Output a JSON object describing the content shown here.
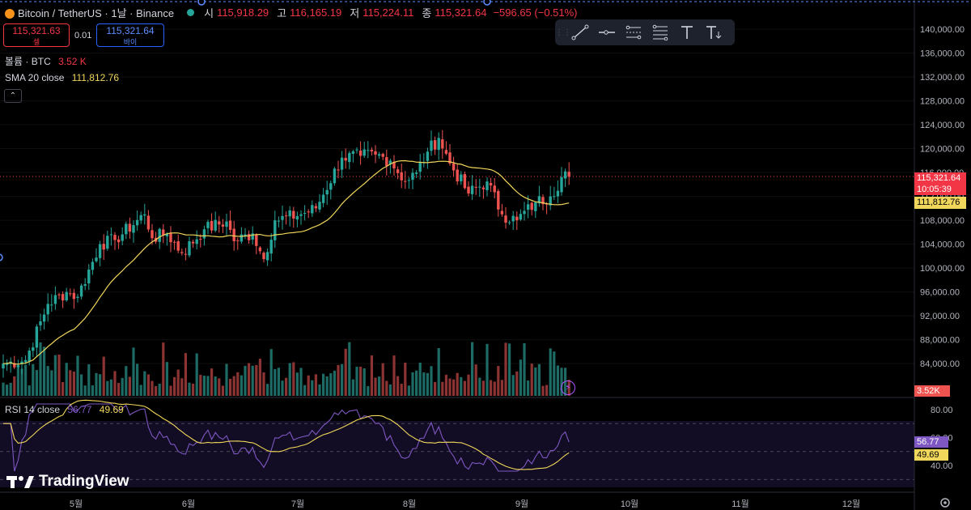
{
  "header": {
    "symbol": "Bitcoin / TetherUS · 1날 · Binance",
    "open_label": "시",
    "open": "115,918.29",
    "high_label": "고",
    "high": "116,165.19",
    "low_label": "저",
    "low": "115,224.11",
    "close_label": "종",
    "close": "115,321.64",
    "change": "−596.65 (−0.51%)"
  },
  "trade": {
    "sell_price": "115,321.63",
    "sell_label": "셀",
    "spread": "0.01",
    "buy_price": "115,321.64",
    "buy_label": "바이"
  },
  "legends": {
    "volume_label": "볼륨 · BTC",
    "volume_value": "3.52 K",
    "sma_label": "SMA 20 close",
    "sma_value": "111,812.76",
    "rsi_label": "RSI 14 close",
    "rsi_value": "56.77",
    "rsi_ma_value": "49.69"
  },
  "price_tags": {
    "last": "115,321.64",
    "countdown": "10:05:39",
    "sma": "111,812.76",
    "volume": "3.52K",
    "rsi": "56.77",
    "rsi_ma": "49.69"
  },
  "branding": "TradingView",
  "toolbar_icons": [
    "trend-line-icon",
    "horizontal-ray-icon",
    "parallel-channel-icon",
    "fib-retracement-icon",
    "text-icon",
    "anchored-text-icon"
  ],
  "colors": {
    "up": "#26a69a",
    "down": "#ef5350",
    "sma": "#f0d65a",
    "rsi": "#7e57c2",
    "rsi_ma": "#f0d65a",
    "last_price": "#f23645"
  },
  "chart_data": {
    "type": "candlestick",
    "interval": "1D",
    "price_axis": {
      "ylim": [
        80500,
        143000
      ],
      "ticks": [
        140000,
        136000,
        132000,
        128000,
        124000,
        120000,
        116000,
        112000,
        108000,
        104000,
        100000,
        96000,
        92000,
        88000,
        84000
      ],
      "tick_labels": [
        "140,000.00",
        "136,000.00",
        "132,000.00",
        "128,000.00",
        "124,000.00",
        "120,000.00",
        "116,000.00",
        "112,000.00",
        "108,000.00",
        "104,000.00",
        "100,000.00",
        "96,000.00",
        "92,000.00",
        "88,000.00",
        "84,000.00"
      ]
    },
    "time_axis": {
      "labels": [
        "5월",
        "6월",
        "7월",
        "8월",
        "9월",
        "10월",
        "11월",
        "12월"
      ]
    },
    "anchors": [
      [
        0,
        84000,
        3
      ],
      [
        6,
        84600,
        2
      ],
      [
        12,
        94000,
        2
      ],
      [
        17,
        96000,
        2
      ],
      [
        20,
        95200,
        2
      ],
      [
        26,
        104000,
        3
      ],
      [
        30,
        104700,
        2
      ],
      [
        38,
        109000,
        3
      ],
      [
        40,
        105000,
        3
      ],
      [
        44,
        105800,
        2
      ],
      [
        48,
        102500,
        3
      ],
      [
        54,
        106500,
        2
      ],
      [
        60,
        107800,
        2
      ],
      [
        62,
        104500,
        3
      ],
      [
        67,
        105800,
        2
      ],
      [
        70,
        101500,
        3
      ],
      [
        73,
        108000,
        3
      ],
      [
        80,
        109000,
        2
      ],
      [
        84,
        110000,
        2
      ],
      [
        91,
        118500,
        3
      ],
      [
        96,
        118800,
        2
      ],
      [
        100,
        119000,
        2
      ],
      [
        104,
        118000,
        2
      ],
      [
        108,
        114500,
        3
      ],
      [
        111,
        116000,
        2
      ],
      [
        114,
        119500,
        2
      ],
      [
        117,
        121800,
        3
      ],
      [
        120,
        117500,
        3
      ],
      [
        125,
        112500,
        3
      ],
      [
        130,
        114500,
        2
      ],
      [
        134,
        109000,
        3
      ],
      [
        138,
        108000,
        2
      ],
      [
        143,
        111000,
        2
      ],
      [
        147,
        112000,
        2
      ],
      [
        151,
        116200,
        2
      ],
      [
        152,
        115300,
        1
      ]
    ],
    "sma_period": 20,
    "sma_last": 111812.76,
    "rsi": {
      "period": 14,
      "ylim": [
        36,
        84
      ],
      "ticks": [
        80,
        60,
        40
      ],
      "tick_labels": [
        "80.00",
        "60.00",
        "40.00"
      ],
      "bands": [
        70,
        50,
        30
      ],
      "last": 56.77,
      "ma_last": 49.69
    }
  }
}
